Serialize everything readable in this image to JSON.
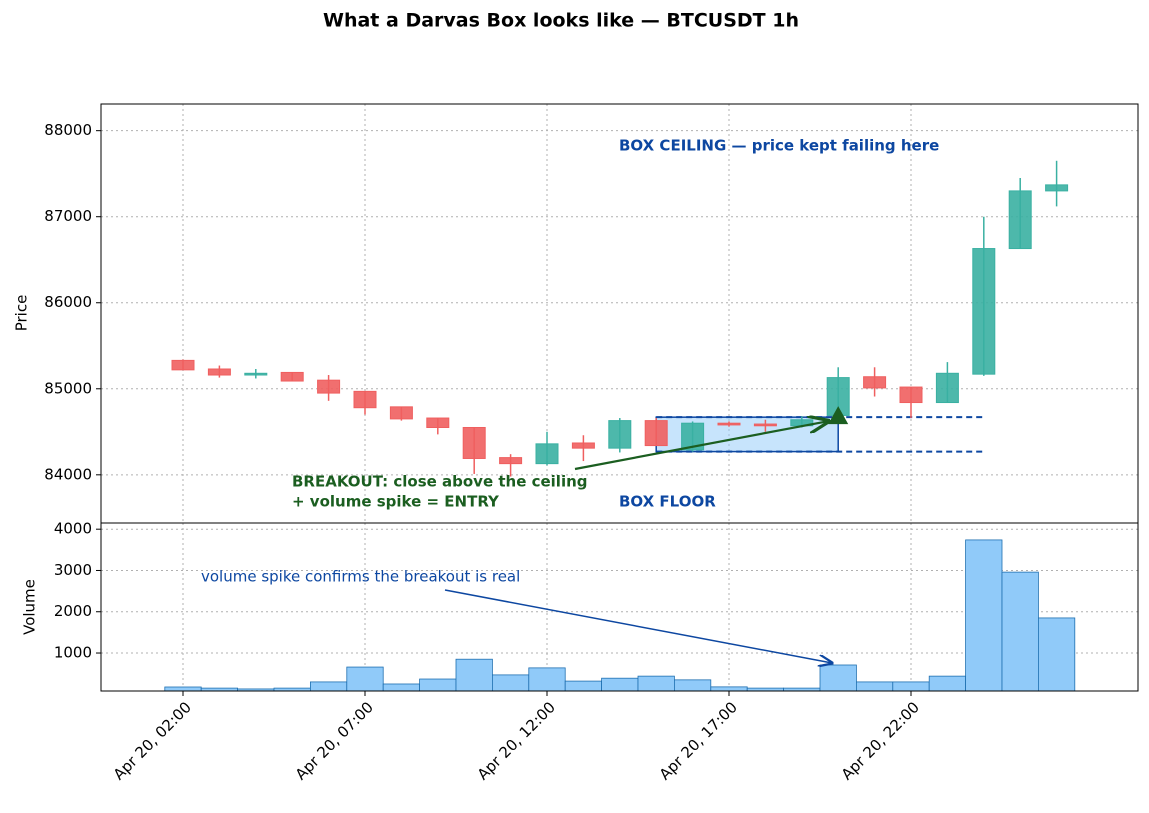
{
  "chart_data": {
    "type": "candlestick",
    "title": "What a Darvas Box looks like  —  BTCUSDT 1h",
    "ylabel": "Price",
    "x": [
      "Apr 20, 02:00",
      "Apr 20, 03:00",
      "Apr 20, 04:00",
      "Apr 20, 05:00",
      "Apr 20, 06:00",
      "Apr 20, 07:00",
      "Apr 20, 08:00",
      "Apr 20, 09:00",
      "Apr 20, 10:00",
      "Apr 20, 11:00",
      "Apr 20, 12:00",
      "Apr 20, 13:00",
      "Apr 20, 14:00",
      "Apr 20, 15:00",
      "Apr 20, 16:00",
      "Apr 20, 17:00",
      "Apr 20, 18:00",
      "Apr 20, 19:00",
      "Apr 20, 20:00",
      "Apr 20, 21:00",
      "Apr 20, 22:00",
      "Apr 20, 23:00",
      "Apr 21, 00:00",
      "Apr 21, 01:00",
      "Apr 21, 02:00"
    ],
    "open": [
      85330,
      85230,
      85160,
      85190,
      85100,
      84970,
      84790,
      84660,
      84550,
      84200,
      84130,
      84370,
      84310,
      84630,
      84290,
      84600,
      84590,
      84570,
      84690,
      85140,
      85020,
      84840,
      85170,
      86630,
      87300
    ],
    "high": [
      85340,
      85270,
      85230,
      85190,
      85160,
      84970,
      84790,
      84660,
      84550,
      84240,
      84500,
      84460,
      84660,
      84660,
      84620,
      84620,
      84640,
      84680,
      85250,
      85250,
      85020,
      85310,
      87000,
      87450,
      87650
    ],
    "low": [
      85220,
      85130,
      85120,
      85090,
      84860,
      84700,
      84630,
      84470,
      84010,
      83980,
      84110,
      84160,
      84260,
      84340,
      84270,
      84560,
      84500,
      84550,
      84670,
      84910,
      84660,
      84840,
      85150,
      86630,
      87120
    ],
    "close": [
      85220,
      85160,
      85180,
      85090,
      84950,
      84780,
      84650,
      84550,
      84190,
      84130,
      84360,
      84310,
      84630,
      84340,
      84600,
      84580,
      84570,
      84640,
      85130,
      85010,
      84840,
      85180,
      86630,
      87300,
      87370
    ],
    "up_color": "#3ab0a2",
    "down_color": "#ef5f5f",
    "ylim": [
      83440,
      88310
    ],
    "yticks": [
      84000,
      85000,
      86000,
      87000,
      88000
    ],
    "xticks": [
      "Apr 20, 02:00",
      "Apr 20, 07:00",
      "Apr 20, 12:00",
      "Apr 20, 17:00",
      "Apr 20, 22:00"
    ],
    "grid": true,
    "box": {
      "start": "Apr 20, 15:00",
      "end": "Apr 20, 20:00",
      "line_end": "Apr 21, 00:00",
      "ceiling": 84670,
      "floor": 84270,
      "color": "#0d47a1"
    },
    "breakout": {
      "x": "Apr 20, 20:00",
      "price": 84670,
      "color": "#1b5e20"
    },
    "annotations": {
      "ceiling": "BOX CEILING — price kept failing here",
      "floor": "BOX FLOOR",
      "breakout": [
        "BREAKOUT: close above the ceiling",
        "+ volume spike = ENTRY"
      ],
      "volume": "volume spike confirms the breakout is real"
    },
    "volume": {
      "ylabel": "Volume",
      "values": [
        177,
        150,
        130,
        150,
        300,
        660,
        250,
        370,
        850,
        470,
        640,
        320,
        390,
        440,
        350,
        180,
        150,
        150,
        710,
        300,
        300,
        440,
        3740,
        2960,
        1850
      ],
      "color": "#90caf9",
      "edge_color": "#1e6fb0",
      "ylim": [
        80,
        4150
      ],
      "yticks": [
        1000,
        2000,
        3000,
        4000
      ]
    }
  }
}
